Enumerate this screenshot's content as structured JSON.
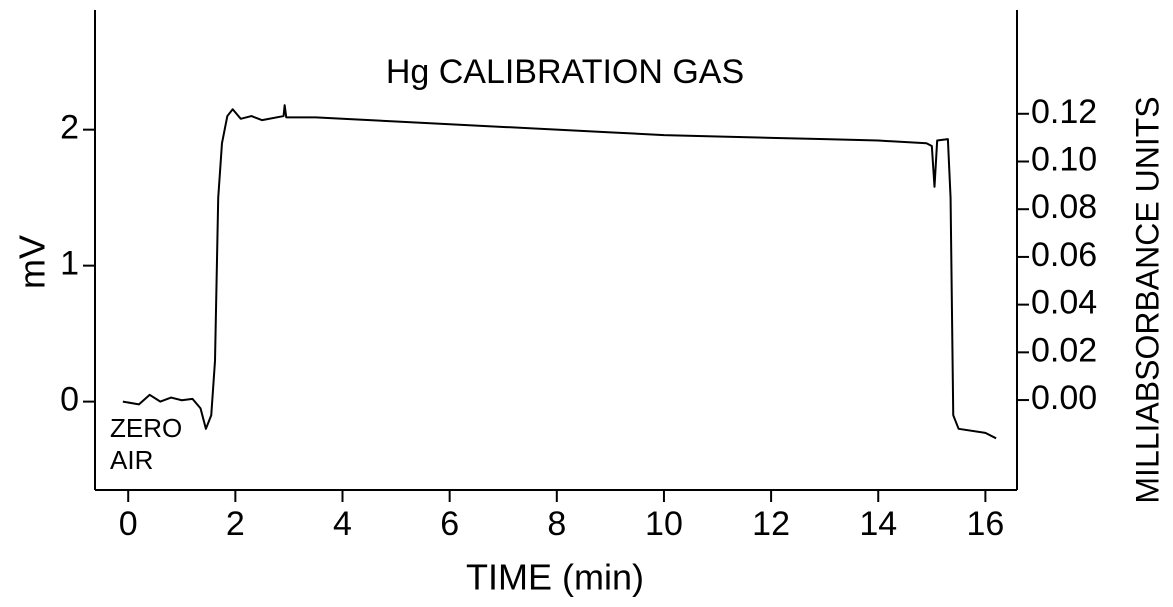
{
  "chart_data": {
    "type": "line",
    "title": "Hg CALIBRATION GAS",
    "x_label": "TIME (min)",
    "y_label": "mV",
    "y2_label": "MILLIABSORBANCE UNITS",
    "annotations": [
      "ZERO",
      "AIR"
    ],
    "x": [
      -0.1,
      0.2,
      0.4,
      0.6,
      0.8,
      1.0,
      1.2,
      1.35,
      1.45,
      1.55,
      1.62,
      1.68,
      1.75,
      1.85,
      1.95,
      2.1,
      2.3,
      2.5,
      2.9,
      2.92,
      2.95,
      3.5,
      4,
      5,
      6,
      7,
      8,
      9,
      10,
      11,
      12,
      13,
      14,
      14.9,
      15.0,
      15.05,
      15.1,
      15.3,
      15.35,
      15.4,
      15.5,
      16,
      16.2
    ],
    "series": [
      {
        "name": "Hg calibration gas",
        "color": "#000000",
        "values": [
          0.0,
          -0.02,
          0.05,
          0.0,
          0.03,
          0.01,
          0.02,
          -0.05,
          -0.2,
          -0.1,
          0.3,
          1.5,
          1.9,
          2.1,
          2.15,
          2.08,
          2.1,
          2.07,
          2.1,
          2.18,
          2.09,
          2.09,
          2.08,
          2.06,
          2.04,
          2.02,
          2.0,
          1.98,
          1.96,
          1.95,
          1.94,
          1.93,
          1.92,
          1.9,
          1.88,
          1.58,
          1.92,
          1.93,
          1.5,
          -0.1,
          -0.2,
          -0.23,
          -0.27
        ]
      }
    ],
    "xlim": [
      -0.62,
      16.59
    ],
    "xticks": [
      0,
      2,
      4,
      6,
      8,
      10,
      12,
      14,
      16
    ],
    "ylim": [
      -0.65,
      2.88
    ],
    "yticks": [
      0,
      1,
      2
    ],
    "y2lim": [
      -0.0377,
      0.1635
    ],
    "y2ticks": [
      {
        "value": 0,
        "label": "0.00"
      },
      {
        "value": 0.02,
        "label": "0.02"
      },
      {
        "value": 0.04,
        "label": "0.04"
      },
      {
        "value": 0.06,
        "label": "0.06"
      },
      {
        "value": 0.08,
        "label": "0.08"
      },
      {
        "value": 0.1,
        "label": "0.10"
      },
      {
        "value": 0.12,
        "label": "0.12"
      }
    ],
    "grid": false
  }
}
